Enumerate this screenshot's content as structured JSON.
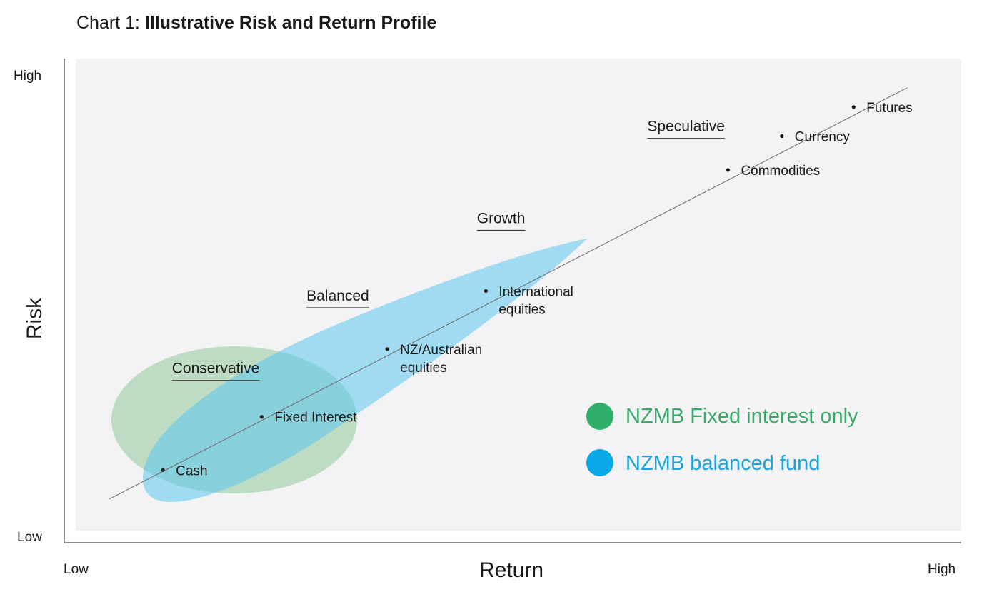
{
  "title": {
    "prefix": "Chart 1: ",
    "bold": "Illustrative Risk and Return Profile"
  },
  "colors": {
    "panel": "#f3f3f5",
    "axis": "#8c8c8c",
    "green": "#2eb06b",
    "blue": "#08a8e6",
    "green_fill": "#9fcfa8",
    "blue_fill": "#7fd2f0",
    "green_text": "#3aaa66",
    "blue_text": "#1aa3dd"
  },
  "chart_data": {
    "type": "scatter",
    "title": "Chart 1: Illustrative Risk and Return Profile",
    "xlabel": "Return",
    "ylabel": "Risk",
    "x_ticks": [
      "Low",
      "High"
    ],
    "y_ticks": [
      "High",
      "Low"
    ],
    "xlim": [
      0,
      100
    ],
    "ylim": [
      0,
      100
    ],
    "trend_line": {
      "from": [
        5,
        9
      ],
      "to": [
        94,
        94
      ]
    },
    "points": [
      {
        "label": [
          "Cash"
        ],
        "x": 11,
        "y": 15
      },
      {
        "label": [
          "Fixed Interest"
        ],
        "x": 22,
        "y": 26
      },
      {
        "label": [
          "NZ/Australian",
          "equities"
        ],
        "x": 36,
        "y": 40
      },
      {
        "label": [
          "International",
          "equities"
        ],
        "x": 47,
        "y": 52
      },
      {
        "label": [
          "Commodities"
        ],
        "x": 74,
        "y": 77
      },
      {
        "label": [
          "Currency"
        ],
        "x": 80,
        "y": 84
      },
      {
        "label": [
          "Futures"
        ],
        "x": 88,
        "y": 90
      }
    ],
    "categories": [
      {
        "label": "Conservative",
        "x": 12,
        "y": 35
      },
      {
        "label": "Balanced",
        "x": 27,
        "y": 50
      },
      {
        "label": "Growth",
        "x": 46,
        "y": 66
      },
      {
        "label": "Speculative",
        "x": 65,
        "y": 85
      }
    ],
    "legend": [
      {
        "name": "NZMB Fixed interest only",
        "color": "#2eb06b"
      },
      {
        "name": "NZMB balanced fund",
        "color": "#08a8e6"
      }
    ],
    "legend_position": "bottom-right"
  }
}
